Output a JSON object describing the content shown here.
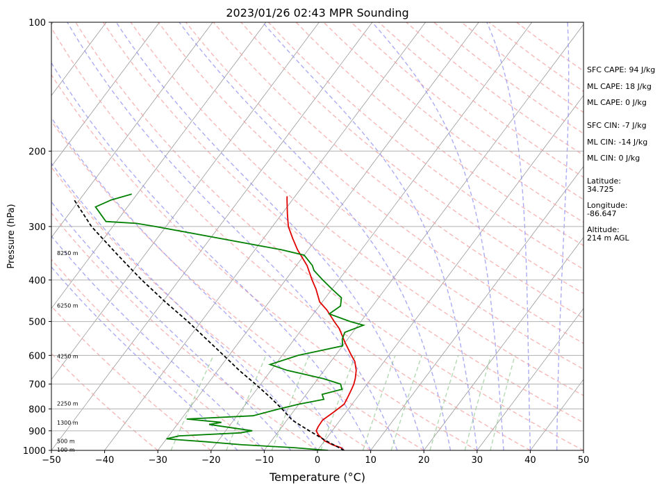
{
  "chart_data": {
    "type": "line",
    "title": "2023/01/26 02:43 MPR Sounding",
    "xlabel": "Temperature (°C)",
    "ylabel": "Pressure (hPa)",
    "xlim": [
      -50,
      50
    ],
    "ylim": [
      1000,
      100
    ],
    "y_scale": "log",
    "x_ticks": [
      -50,
      -40,
      -30,
      -20,
      -10,
      0,
      10,
      20,
      30,
      40,
      50
    ],
    "x_tick_labels": [
      "−50",
      "−40",
      "−30",
      "−20",
      "−10",
      "0",
      "10",
      "20",
      "30",
      "40",
      "50"
    ],
    "y_ticks": [
      1000,
      900,
      800,
      700,
      600,
      500,
      400,
      300,
      200,
      100
    ],
    "y_tick_labels": [
      "1000",
      "900",
      "800",
      "700",
      "600",
      "500",
      "400",
      "300",
      "200",
      "100"
    ],
    "skew": true,
    "grid": true,
    "series": [
      {
        "kind": "temperature",
        "color": "#e00000",
        "points": [
          [
            1000,
            5
          ],
          [
            985,
            4
          ],
          [
            970,
            2
          ],
          [
            950,
            0
          ],
          [
            920,
            -2
          ],
          [
            900,
            -3
          ],
          [
            880,
            -3.2
          ],
          [
            850,
            -3.3
          ],
          [
            820,
            -2.5
          ],
          [
            800,
            -2
          ],
          [
            780,
            -1.5
          ],
          [
            750,
            -1.8
          ],
          [
            720,
            -2.2
          ],
          [
            700,
            -2.5
          ],
          [
            680,
            -3
          ],
          [
            650,
            -4
          ],
          [
            620,
            -5.5
          ],
          [
            600,
            -7
          ],
          [
            560,
            -10
          ],
          [
            520,
            -13
          ],
          [
            500,
            -15
          ],
          [
            470,
            -18
          ],
          [
            450,
            -20.5
          ],
          [
            420,
            -23
          ],
          [
            400,
            -25
          ],
          [
            370,
            -28
          ],
          [
            340,
            -32
          ],
          [
            320,
            -34.5
          ],
          [
            300,
            -37
          ],
          [
            280,
            -39
          ],
          [
            260,
            -41
          ],
          [
            255,
            -41.5
          ]
        ]
      },
      {
        "kind": "dewpoint",
        "color": "#008000",
        "points": [
          [
            1000,
            2
          ],
          [
            985,
            -5
          ],
          [
            970,
            -15
          ],
          [
            955,
            -22
          ],
          [
            940,
            -30
          ],
          [
            925,
            -28
          ],
          [
            910,
            -17
          ],
          [
            900,
            -15
          ],
          [
            870,
            -24
          ],
          [
            860,
            -22
          ],
          [
            845,
            -29
          ],
          [
            830,
            -17
          ],
          [
            815,
            -15
          ],
          [
            800,
            -13
          ],
          [
            780,
            -10
          ],
          [
            760,
            -6
          ],
          [
            740,
            -7
          ],
          [
            720,
            -4
          ],
          [
            700,
            -5
          ],
          [
            680,
            -9
          ],
          [
            650,
            -17
          ],
          [
            630,
            -21
          ],
          [
            600,
            -17
          ],
          [
            570,
            -10
          ],
          [
            550,
            -11
          ],
          [
            530,
            -11.5
          ],
          [
            510,
            -9
          ],
          [
            500,
            -12
          ],
          [
            480,
            -17
          ],
          [
            460,
            -16
          ],
          [
            440,
            -17
          ],
          [
            420,
            -20
          ],
          [
            400,
            -23
          ],
          [
            380,
            -26
          ],
          [
            370,
            -27
          ],
          [
            350,
            -30
          ],
          [
            340,
            -35
          ],
          [
            320,
            -48
          ],
          [
            300,
            -62
          ],
          [
            295,
            -66
          ],
          [
            292,
            -72
          ],
          [
            270,
            -76
          ],
          [
            260,
            -74
          ],
          [
            252,
            -71
          ]
        ]
      },
      {
        "kind": "parcel",
        "color": "#000000",
        "style": "dashed",
        "points": [
          [
            1000,
            5
          ],
          [
            950,
            0.3
          ],
          [
            900,
            -4.3
          ],
          [
            850,
            -9
          ],
          [
            800,
            -12.5
          ],
          [
            750,
            -16.5
          ],
          [
            700,
            -21
          ],
          [
            650,
            -26
          ],
          [
            600,
            -31
          ],
          [
            550,
            -36.5
          ],
          [
            500,
            -42.5
          ],
          [
            450,
            -49.5
          ],
          [
            400,
            -57
          ],
          [
            350,
            -65
          ],
          [
            300,
            -74
          ],
          [
            260,
            -81
          ]
        ]
      }
    ],
    "height_labels": [
      {
        "p": 1000,
        "text": "100 m"
      },
      {
        "p": 955,
        "text": "500 m"
      },
      {
        "p": 865,
        "text": "1300 m"
      },
      {
        "p": 780,
        "text": "2250 m"
      },
      {
        "p": 605,
        "text": "4250 m"
      },
      {
        "p": 460,
        "text": "6250 m"
      },
      {
        "p": 347,
        "text": "8250 m"
      }
    ],
    "dry_adiabat_thetas": [
      -30,
      -20,
      -10,
      0,
      10,
      20,
      30,
      40,
      50,
      60,
      70,
      80,
      90,
      100,
      110,
      120,
      130,
      140,
      150,
      160,
      170,
      180,
      190,
      200,
      210
    ],
    "moist_adiabat_starts": [
      -15,
      -10,
      -5,
      0,
      5,
      10,
      15,
      20,
      25,
      30,
      35,
      40,
      45
    ],
    "mixing_ratios": [
      0.4,
      1,
      2,
      4,
      7,
      10,
      16,
      24,
      32
    ],
    "annotations": [
      {
        "id": "sfc-cape",
        "text": "SFC CAPE: 94 J/kg"
      },
      {
        "id": "ml-cape-1",
        "text": "ML CAPE: 18 J/kg"
      },
      {
        "id": "ml-cape-2",
        "text": "ML CAPE: 0 J/kg"
      },
      {
        "id": "sfc-cin",
        "text": "SFC CIN: -7 J/kg"
      },
      {
        "id": "ml-cin-1",
        "text": "ML CIN: -14 J/kg"
      },
      {
        "id": "ml-cin-2",
        "text": "ML CIN: 0 J/kg"
      },
      {
        "id": "latitude",
        "text": "Latitude:\n34.725"
      },
      {
        "id": "longitude",
        "text": "Longitude:\n-86.647"
      },
      {
        "id": "altitude",
        "text": "Altitude:\n214 m AGL"
      }
    ],
    "colors": {
      "isobar": "#b0b0b0",
      "skewed_isotherm": "#999999",
      "dry_adiabat": "#f4a0a0",
      "moist_adiabat": "#9090f0",
      "mixing_ratio": "#80c080"
    }
  }
}
